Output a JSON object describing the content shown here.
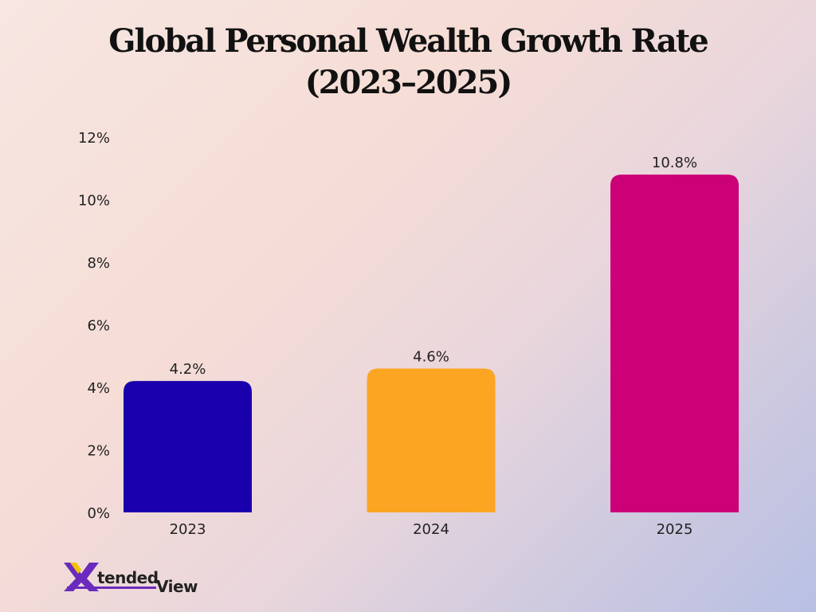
{
  "chart_data": {
    "type": "bar",
    "title_lines": [
      "Global Personal Wealth Growth Rate",
      "(2023–2025)"
    ],
    "categories": [
      "2023",
      "2024",
      "2025"
    ],
    "values": [
      4.2,
      4.6,
      10.8
    ],
    "value_labels": [
      "4.2%",
      "4.6%",
      "10.8%"
    ],
    "colors": [
      "#1a00ad",
      "#fba523",
      "#cc0077"
    ],
    "ylim": [
      0,
      12
    ],
    "yticks": [
      0,
      2,
      4,
      6,
      8,
      10,
      12
    ],
    "ytick_labels": [
      "0%",
      "2%",
      "4%",
      "6%",
      "8%",
      "10%",
      "12%"
    ],
    "grid": false,
    "xlabel": "",
    "ylabel": ""
  },
  "logo": {
    "text": "XtendedView",
    "x_color": "#6a2bbd",
    "accent_color": "#f2c200"
  }
}
